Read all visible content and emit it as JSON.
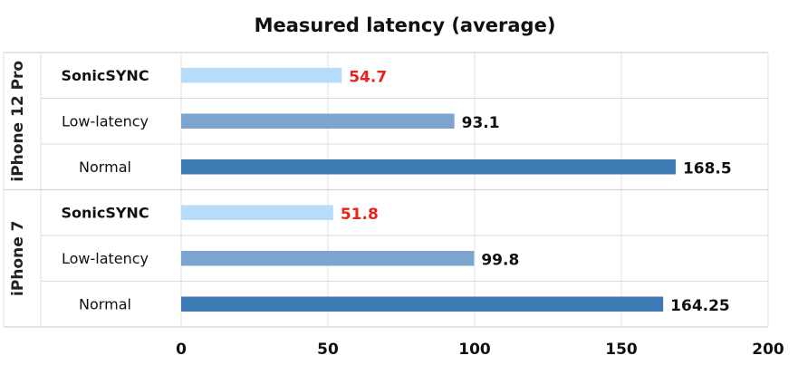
{
  "chart_data": {
    "type": "bar",
    "orientation": "horizontal",
    "title": "Measured latency (average)",
    "xlabel": "",
    "ylabel": "",
    "xlim": [
      0,
      200
    ],
    "xticks": [
      "0",
      "50",
      "100",
      "150",
      "200"
    ],
    "grid": true,
    "groups": [
      {
        "name": "iPhone 12 Pro",
        "bars": [
          {
            "category": "SonicSYNC",
            "value": 54.7,
            "label": "54.7",
            "color": "#b7dcfa",
            "label_color": "#e8231c",
            "bold": true
          },
          {
            "category": "Low-latency",
            "value": 93.1,
            "label": "93.1",
            "color": "#7da4cf",
            "label_color": "#111111",
            "bold": false
          },
          {
            "category": "Normal",
            "value": 168.5,
            "label": "168.5",
            "color": "#3e7ab3",
            "label_color": "#111111",
            "bold": false
          }
        ]
      },
      {
        "name": "iPhone 7",
        "bars": [
          {
            "category": "SonicSYNC",
            "value": 51.8,
            "label": "51.8",
            "color": "#b7dcfa",
            "label_color": "#e8231c",
            "bold": true
          },
          {
            "category": "Low-latency",
            "value": 99.8,
            "label": "99.8",
            "color": "#7da4cf",
            "label_color": "#111111",
            "bold": false
          },
          {
            "category": "Normal",
            "value": 164.25,
            "label": "164.25",
            "color": "#3e7ab3",
            "label_color": "#111111",
            "bold": false
          }
        ]
      }
    ]
  }
}
